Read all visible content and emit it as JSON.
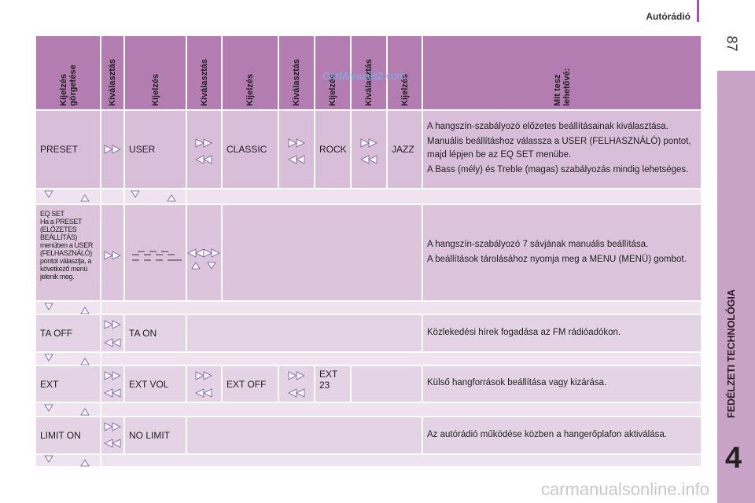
{
  "header": {
    "section": "Autórádió",
    "page": "87"
  },
  "sidebar": {
    "chapter_title": "FEDÉLZETI TECHNOLÓGIA",
    "chapter_number": "4"
  },
  "watermarks": [
    "CarManuals2.com",
    "carmanualsonline.info"
  ],
  "table": {
    "columns": [
      "Kijelzés görgetése",
      "Kiválasztás",
      "Kijelzés",
      "Kiválasztás",
      "Kijelzés",
      "Kiválasztás",
      "Kijelzés",
      "Kiválasztás",
      "Kijelzés",
      "Mit tesz lehetővé:"
    ],
    "rows": [
      {
        "labels": [
          "PRESET",
          "USER",
          "CLASSIC",
          "ROCK",
          "JAZZ"
        ],
        "description": [
          "A hangszín-szabályozó előzetes beállításainak kiválasztása.",
          "Manuális beállításhoz válassza a USER (FELHASZNÁLÓ) pontot, majd lépjen be az EQ SET menübe.",
          "A Bass (mély) és Treble (magas) szabályozás mindig lehetséges."
        ]
      },
      {
        "labels": [
          "EQ SET",
          "Ha a PRESET (ELŐZETES BEÁLLÍTÁS) menüben a USER (FELHASZNÁLÓ) pontot választja, a következő menü jelenik meg."
        ],
        "description": [
          "A hangszín-szabályozó 7 sávjának manuális beállítása.",
          "A beállítások tárolásához nyomja meg a MENU (MENÜ) gombot."
        ]
      },
      {
        "labels": [
          "TA OFF",
          "TA ON"
        ],
        "description": [
          "Közlekedési hírek fogadása az FM rádióadókon."
        ]
      },
      {
        "labels": [
          "EXT",
          "EXT VOL",
          "EXT OFF",
          "EXT 23"
        ],
        "description": [
          "Külső hangforrások beállítása vagy kizárása."
        ]
      },
      {
        "labels": [
          "LIMIT ON",
          "NO LIMIT"
        ],
        "description": [
          "Az autórádió működése közben a hangerőplafon aktiválása."
        ]
      }
    ]
  }
}
